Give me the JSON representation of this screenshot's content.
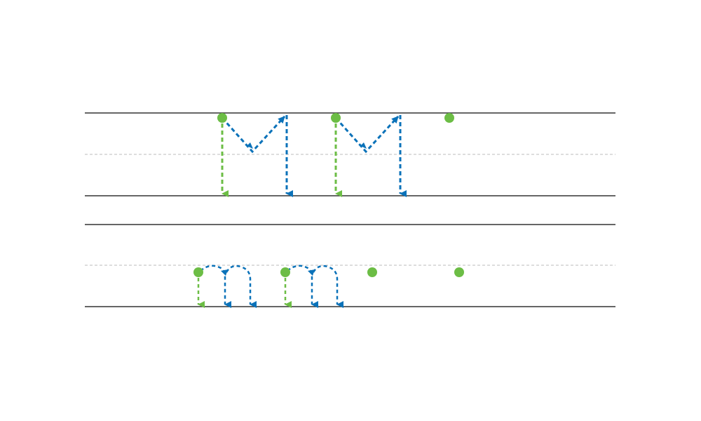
{
  "colors": {
    "background": "#ffffff",
    "ruling_line": "#333333",
    "midline": "#bbbbbb",
    "start_stroke": "#6cbd45",
    "continue_stroke": "#0b72b9"
  },
  "rows": [
    {
      "letter": "M",
      "case": "uppercase",
      "traced_count": 2,
      "blank_start_dots": 1
    },
    {
      "letter": "m",
      "case": "lowercase",
      "traced_count": 2,
      "blank_start_dots": 2
    }
  ]
}
